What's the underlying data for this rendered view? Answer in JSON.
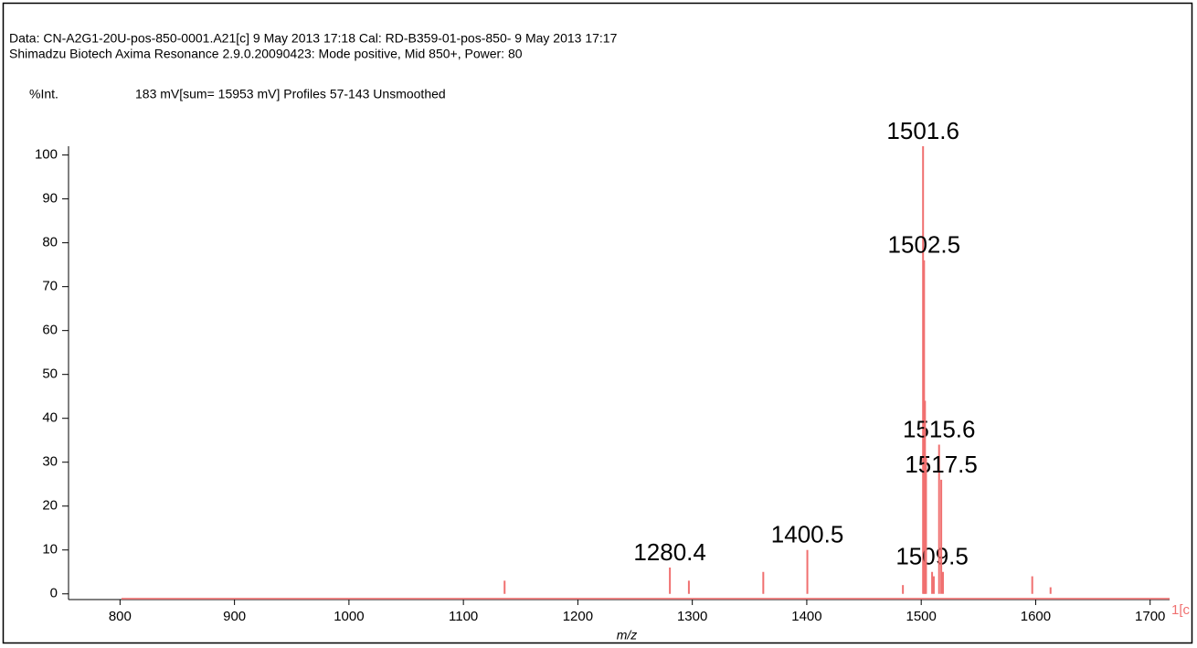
{
  "chart_data": {
    "type": "stem",
    "header": [
      "Data: CN-A2G1-20U-pos-850-0001.A21[c] 9 May 2013 17:18 Cal: RD-B359-01-pos-850- 9 May 2013 17:17",
      "Shimadzu Biotech Axima Resonance 2.9.0.20090423: Mode positive, Mid 850+, Power: 80"
    ],
    "ylabel": "%Int.",
    "subtitle": "183 mV[sum= 15953 mV]  Profiles 57-143 Unsmoothed",
    "xlabel": "m/z",
    "corner_text": "1[c",
    "series": [
      {
        "color": "#f07070",
        "show_labels": true,
        "x": [
          1280.4,
          1400.5,
          1501.6,
          1502.5,
          1509.5,
          1515.6,
          1517.5
        ],
        "values": [
          6,
          10,
          102,
          76,
          5,
          34,
          26
        ]
      },
      {
        "color": "#f07070",
        "show_labels": false,
        "x": [
          1136,
          1297,
          1362,
          1484,
          1503.3,
          1504.2,
          1511,
          1519,
          1597,
          1613
        ],
        "values": [
          3,
          3,
          5,
          2,
          44,
          31,
          4,
          5,
          4,
          1.5
        ]
      }
    ],
    "xlim": [
      755,
      1717
    ],
    "ylim": [
      -1.3,
      102
    ],
    "xticks": [
      800,
      900,
      1000,
      1100,
      1200,
      1300,
      1400,
      1500,
      1600,
      1700
    ],
    "yticks": [
      0,
      10,
      20,
      30,
      40,
      50,
      60,
      70,
      80,
      90,
      100
    ]
  }
}
